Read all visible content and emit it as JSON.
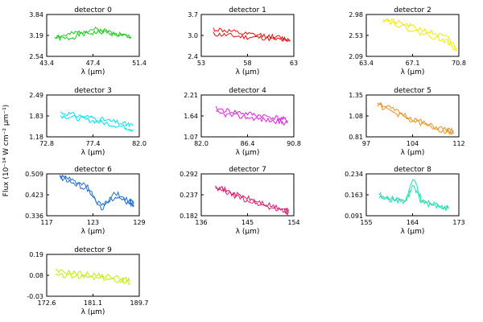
{
  "figure": {
    "ylabel": "Flux (10⁻¹⁴ W cm⁻² µm⁻¹)",
    "xlabel": "λ (µm)"
  },
  "chart_data": [
    {
      "type": "line",
      "title": "detector 0",
      "xticks": [
        "43.4",
        "47.4",
        "51.4"
      ],
      "xlim": [
        43.4,
        51.4
      ],
      "yticks": [
        "2.54",
        "3.19",
        "3.84"
      ],
      "ylim": [
        2.54,
        3.84
      ],
      "color": "#22cc22",
      "series": [
        {
          "x": [
            44.1,
            45.2,
            46.3,
            47.4,
            48.5,
            49.6,
            50.7
          ],
          "y": [
            3.12,
            3.08,
            3.22,
            3.27,
            3.3,
            3.2,
            3.14
          ]
        },
        {
          "x": [
            44.1,
            45.2,
            46.3,
            47.4,
            48.5,
            49.6,
            50.7
          ],
          "y": [
            3.15,
            3.2,
            3.3,
            3.38,
            3.34,
            3.25,
            3.12
          ]
        }
      ]
    },
    {
      "type": "line",
      "title": "detector 1",
      "xticks": [
        "53",
        "58",
        "63"
      ],
      "xlim": [
        53,
        63
      ],
      "yticks": [
        "2.4",
        "3.0",
        "3.7"
      ],
      "ylim": [
        2.4,
        3.7
      ],
      "color": "#ee1111",
      "series": [
        {
          "x": [
            54.3,
            56.0,
            57.8,
            59.6,
            61.4,
            62.6
          ],
          "y": [
            3.1,
            3.05,
            3.0,
            2.98,
            2.92,
            2.86
          ]
        },
        {
          "x": [
            54.3,
            56.0,
            57.8,
            59.6,
            61.4,
            62.6
          ],
          "y": [
            3.25,
            3.18,
            3.08,
            3.05,
            2.98,
            2.9
          ]
        }
      ]
    },
    {
      "type": "line",
      "title": "detector 2",
      "xticks": [
        "63.4",
        "67.1",
        "70.8"
      ],
      "xlim": [
        63.4,
        70.8
      ],
      "yticks": [
        "2.09",
        "2.53",
        "2.98"
      ],
      "ylim": [
        2.09,
        2.98
      ],
      "color": "#eeee00",
      "series": [
        {
          "x": [
            64.7,
            66.0,
            67.3,
            68.6,
            69.9,
            70.6
          ],
          "y": [
            2.9,
            2.8,
            2.7,
            2.6,
            2.48,
            2.28
          ]
        },
        {
          "x": [
            64.7,
            66.0,
            67.3,
            68.6,
            69.9,
            70.6
          ],
          "y": [
            2.88,
            2.76,
            2.62,
            2.52,
            2.4,
            2.2
          ]
        }
      ]
    },
    {
      "type": "line",
      "title": "detector 3",
      "xticks": [
        "72.8",
        "77.4",
        "82.0"
      ],
      "xlim": [
        72.8,
        82.0
      ],
      "yticks": [
        "1.18",
        "1.83",
        "2.49"
      ],
      "ylim": [
        1.18,
        2.49
      ],
      "color": "#00e5ee",
      "series": [
        {
          "x": [
            74.2,
            75.8,
            77.4,
            79.0,
            80.6,
            81.4
          ],
          "y": [
            1.95,
            1.85,
            1.78,
            1.68,
            1.58,
            1.52
          ]
        },
        {
          "x": [
            74.2,
            75.8,
            77.4,
            79.0,
            80.6,
            81.4
          ],
          "y": [
            1.85,
            1.76,
            1.68,
            1.58,
            1.48,
            1.4
          ]
        }
      ]
    },
    {
      "type": "line",
      "title": "detector 4",
      "xticks": [
        "82.0",
        "86.4",
        "90.8"
      ],
      "xlim": [
        82.0,
        90.8
      ],
      "yticks": [
        "1.07",
        "1.64",
        "2.21"
      ],
      "ylim": [
        1.07,
        2.21
      ],
      "color": "#dd22dd",
      "series": [
        {
          "x": [
            83.4,
            84.9,
            86.4,
            87.9,
            89.4,
            90.2
          ],
          "y": [
            1.84,
            1.76,
            1.7,
            1.64,
            1.58,
            1.52
          ]
        },
        {
          "x": [
            83.4,
            84.9,
            86.4,
            87.9,
            89.4,
            90.2
          ],
          "y": [
            1.72,
            1.65,
            1.6,
            1.54,
            1.48,
            1.44
          ]
        }
      ]
    },
    {
      "type": "line",
      "title": "detector 5",
      "xticks": [
        "97",
        "104",
        "112"
      ],
      "xlim": [
        97,
        112
      ],
      "yticks": [
        "0.81",
        "1.08",
        "1.35"
      ],
      "ylim": [
        0.81,
        1.35
      ],
      "color": "#e89020",
      "series": [
        {
          "x": [
            98.8,
            101.6,
            104.4,
            107.2,
            110.0,
            111.2
          ],
          "y": [
            1.26,
            1.15,
            1.05,
            0.96,
            0.9,
            0.88
          ]
        },
        {
          "x": [
            98.8,
            101.6,
            104.4,
            107.2,
            110.0,
            111.2
          ],
          "y": [
            1.22,
            1.12,
            1.02,
            0.94,
            0.88,
            0.86
          ]
        }
      ]
    },
    {
      "type": "line",
      "title": "detector 6",
      "xticks": [
        "117",
        "123",
        "129"
      ],
      "xlim": [
        117,
        129
      ],
      "yticks": [
        "0.336",
        "0.423",
        "0.509"
      ],
      "ylim": [
        0.336,
        0.509
      ],
      "color": "#1e6ed2",
      "series": [
        {
          "x": [
            118.7,
            120.5,
            122.3,
            124.1,
            125.9,
            127.7,
            128.3
          ],
          "y": [
            0.5,
            0.48,
            0.455,
            0.36,
            0.43,
            0.398,
            0.39
          ]
        },
        {
          "x": [
            118.7,
            120.5,
            122.3,
            124.1,
            125.9,
            127.7,
            128.3
          ],
          "y": [
            0.495,
            0.47,
            0.445,
            0.375,
            0.415,
            0.385,
            0.38
          ]
        }
      ]
    },
    {
      "type": "line",
      "title": "detector 7",
      "xticks": [
        "136",
        "145",
        "154"
      ],
      "xlim": [
        136,
        154
      ],
      "yticks": [
        "0.182",
        "0.237",
        "0.292"
      ],
      "ylim": [
        0.182,
        0.292
      ],
      "color": "#dd1a6e",
      "series": [
        {
          "x": [
            138.7,
            141.4,
            144.1,
            146.8,
            149.5,
            152.2,
            153.0
          ],
          "y": [
            0.262,
            0.245,
            0.232,
            0.22,
            0.208,
            0.198,
            0.196
          ]
        },
        {
          "x": [
            138.7,
            141.4,
            144.1,
            146.8,
            149.5,
            152.2,
            153.0
          ],
          "y": [
            0.255,
            0.24,
            0.226,
            0.214,
            0.203,
            0.193,
            0.19
          ]
        }
      ]
    },
    {
      "type": "line",
      "title": "detector 8",
      "xticks": [
        "155",
        "164",
        "173"
      ],
      "xlim": [
        155,
        173
      ],
      "yticks": [
        "0.091",
        "0.163",
        "0.234"
      ],
      "ylim": [
        0.091,
        0.234
      ],
      "color": "#22ddb0",
      "series": [
        {
          "x": [
            157.5,
            160.1,
            162.7,
            164.2,
            165.8,
            168.4,
            171.0
          ],
          "y": [
            0.162,
            0.15,
            0.145,
            0.218,
            0.142,
            0.128,
            0.118
          ]
        },
        {
          "x": [
            157.5,
            160.1,
            162.7,
            164.2,
            165.8,
            168.4,
            171.0
          ],
          "y": [
            0.155,
            0.144,
            0.14,
            0.195,
            0.136,
            0.124,
            0.114
          ]
        }
      ]
    },
    {
      "type": "line",
      "title": "detector 9",
      "xticks": [
        "172.6",
        "181.1",
        "189.7"
      ],
      "xlim": [
        172.6,
        189.7
      ],
      "yticks": [
        "-0.03",
        "0.08",
        "0.19"
      ],
      "ylim": [
        -0.03,
        0.19
      ],
      "color": "#bff000",
      "series": [
        {
          "x": [
            174.2,
            177.3,
            180.4,
            183.5,
            186.6,
            188.0
          ],
          "y": [
            0.1,
            0.095,
            0.085,
            0.075,
            0.065,
            0.05
          ]
        },
        {
          "x": [
            174.2,
            177.3,
            180.4,
            183.5,
            186.6,
            188.0
          ],
          "y": [
            0.08,
            0.075,
            0.07,
            0.06,
            0.05,
            0.04
          ]
        }
      ]
    }
  ]
}
